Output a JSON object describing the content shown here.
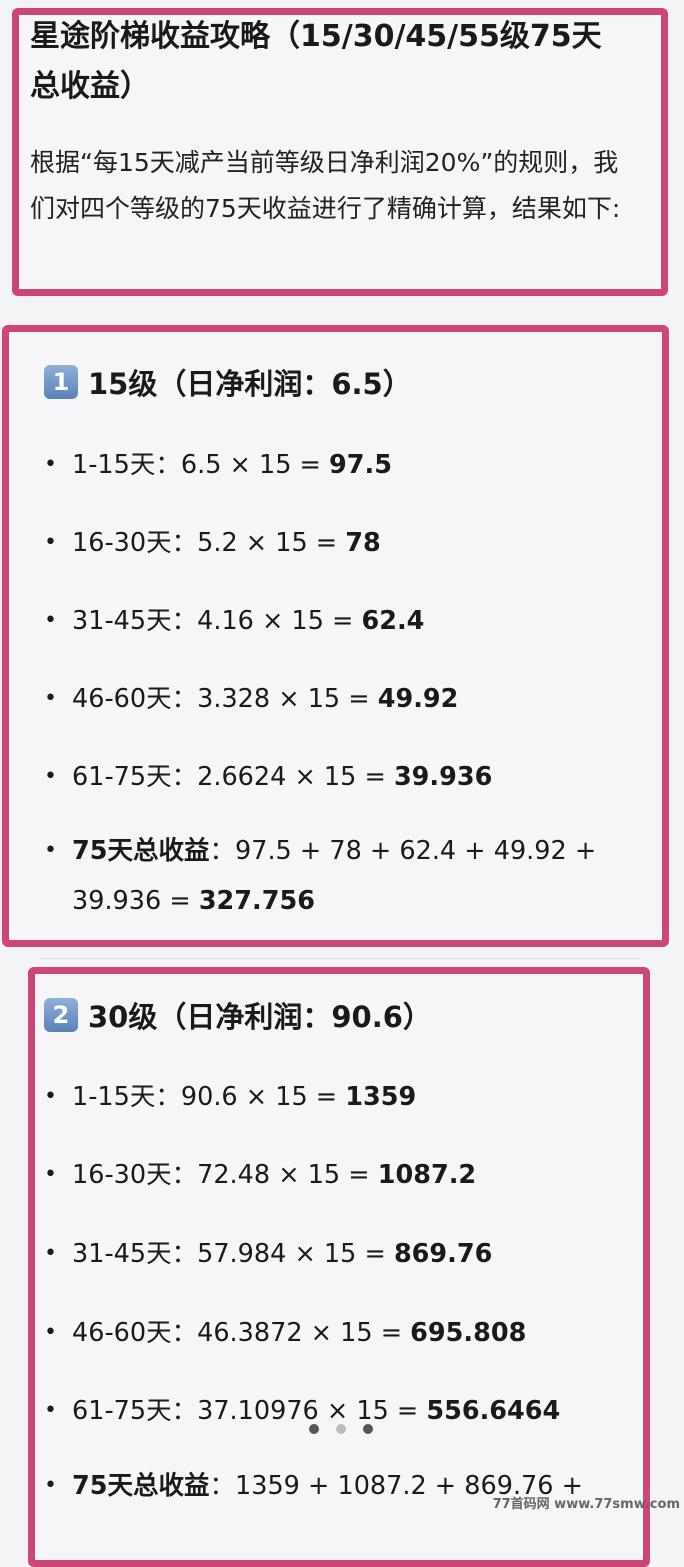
{
  "title": "星途阶梯收益攻略（15/30/45/55级75天总收益）",
  "intro": "根据“每15天减产当前等级日净利润20%”的规则，我们对四个等级的75天收益进行了精确计算，结果如下:",
  "sections": [
    {
      "badge": "1",
      "heading": "15级（日净利润：6.5）",
      "items": [
        {
          "label": "1-15天：",
          "expr": "6.5 × 15 = ",
          "result": "97.5"
        },
        {
          "label": "16-30天：",
          "expr": "5.2 × 15 = ",
          "result": "78"
        },
        {
          "label": "31-45天：",
          "expr": "4.16 × 15 = ",
          "result": "62.4"
        },
        {
          "label": "46-60天：",
          "expr": "3.328 × 15 = ",
          "result": "49.92"
        },
        {
          "label": "61-75天：",
          "expr": "2.6624 × 15 = ",
          "result": "39.936"
        }
      ],
      "total": {
        "label": "75天总收益",
        "expr": "：97.5 + 78 + 62.4 + 49.92 + 39.936 = ",
        "result": "327.756"
      }
    },
    {
      "badge": "2",
      "heading": "30级（日净利润：90.6）",
      "items": [
        {
          "label": "1-15天：",
          "expr": "90.6 × 15 = ",
          "result": "1359"
        },
        {
          "label": "16-30天：",
          "expr": "72.48 × 15 = ",
          "result": "1087.2"
        },
        {
          "label": "31-45天：",
          "expr": "57.984 × 15 = ",
          "result": "869.76"
        },
        {
          "label": "46-60天：",
          "expr": "46.3872 × 15 = ",
          "result": "695.808"
        },
        {
          "label": "61-75天：",
          "expr": "37.10976 × 15 = ",
          "result": "556.6464"
        }
      ],
      "total": {
        "label": "75天总收益",
        "expr": "：1359 + 1087.2 + 869.76 +",
        "result": ""
      }
    }
  ],
  "pager": {
    "count": 3,
    "active": 1
  },
  "watermark": "77首码网 www.77smw.com",
  "colors": {
    "highlight_border": "#cc4676",
    "background": "#f4f4f6"
  }
}
